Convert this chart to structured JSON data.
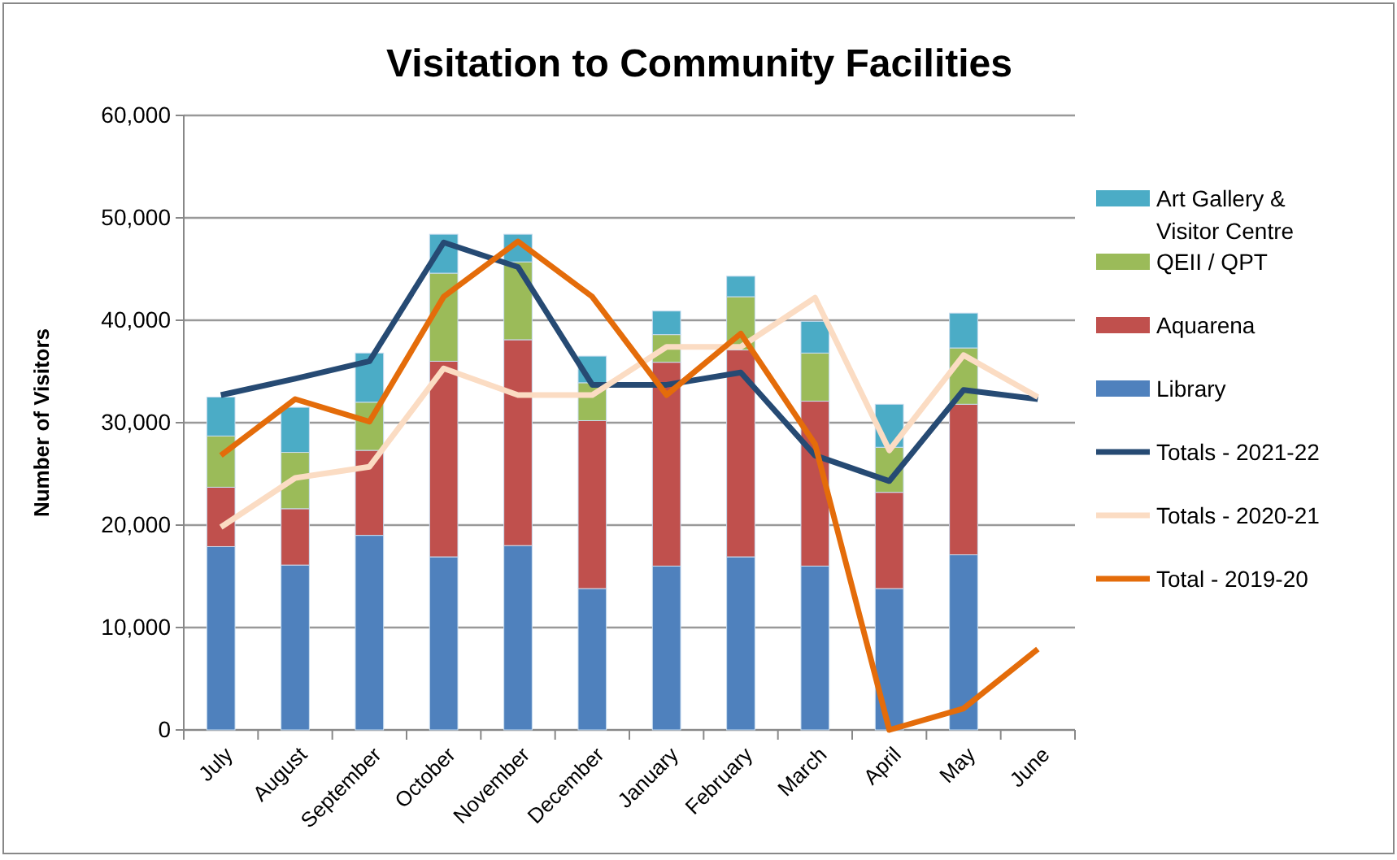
{
  "chart_data": {
    "type": "bar",
    "title": "Visitation to Community Facilities",
    "ylabel": "Number of Visitors",
    "stacked": true,
    "grid": "y",
    "legend": "right",
    "categories": [
      "July",
      "August",
      "September",
      "October",
      "November",
      "December",
      "January",
      "February",
      "March",
      "April",
      "May",
      "June"
    ],
    "ylim": [
      0,
      60000
    ],
    "yticks": [
      {
        "value": 0,
        "label": "0"
      },
      {
        "value": 10000,
        "label": "10,000"
      },
      {
        "value": 20000,
        "label": "20,000"
      },
      {
        "value": 30000,
        "label": "30,000"
      },
      {
        "value": 40000,
        "label": "40,000"
      },
      {
        "value": 50000,
        "label": "50,000"
      },
      {
        "value": 60000,
        "label": "60,000"
      }
    ],
    "series": [
      {
        "name": "Library",
        "color": "#4f81bd",
        "values": [
          17900,
          16100,
          19000,
          16900,
          18000,
          13800,
          16000,
          16900,
          16000,
          13800,
          17100,
          null
        ]
      },
      {
        "name": "Aquarena",
        "color": "#c0504d",
        "values": [
          5800,
          5500,
          8300,
          19100,
          20100,
          16400,
          19900,
          20200,
          16100,
          9400,
          14700,
          null
        ]
      },
      {
        "name": "QEII / QPT",
        "color": "#9bbb59",
        "values": [
          5000,
          5500,
          4700,
          8600,
          7600,
          3700,
          2700,
          5200,
          4700,
          4400,
          5500,
          null
        ]
      },
      {
        "name": "Art Gallery & Visitor Centre",
        "color": "#4bacc6",
        "values": [
          3800,
          4400,
          4800,
          3800,
          2700,
          2600,
          2300,
          2000,
          3100,
          4200,
          3400,
          null
        ]
      },
      {
        "name": "Totals - 2021-22",
        "type": "line",
        "color": "#264a73",
        "values": [
          32700,
          34300,
          36000,
          47600,
          45200,
          33700,
          33700,
          34900,
          26800,
          24300,
          33200,
          32300
        ]
      },
      {
        "name": "Totals - 2020-21",
        "type": "line",
        "color": "#fbdcc3",
        "values": [
          19800,
          24600,
          25700,
          35300,
          32700,
          32700,
          37400,
          37400,
          42200,
          27300,
          36600,
          32500
        ]
      },
      {
        "name": "Total - 2019-20",
        "type": "line",
        "color": "#e46c0a",
        "values": [
          26800,
          32300,
          30100,
          42300,
          47700,
          42300,
          32700,
          38700,
          27900,
          0,
          2100,
          7900
        ]
      }
    ]
  }
}
